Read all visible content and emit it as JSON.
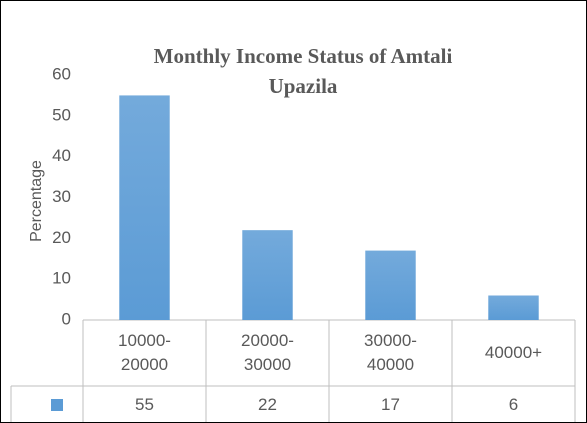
{
  "chart_data": {
    "type": "bar",
    "title": "Monthly Income Status of Amtali Upazila",
    "y_label": "Percentage",
    "categories": [
      "10000-20000",
      "20000-30000",
      "30000-40000",
      "40000+"
    ],
    "values": [
      55,
      22,
      17,
      6
    ],
    "color": "#5b9bd5",
    "ylim": [
      0,
      60
    ],
    "yticks": [
      0,
      10,
      20,
      30,
      40,
      50,
      60
    ],
    "data_table": true
  }
}
